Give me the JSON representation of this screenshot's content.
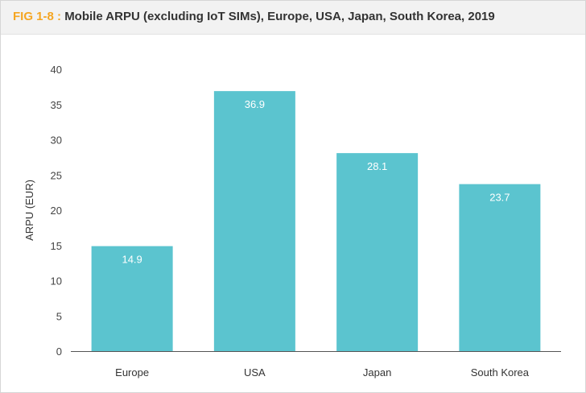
{
  "header": {
    "fig_label": "FIG 1-8 :",
    "title_text": "Mobile ARPU (excluding IoT SIMs), Europe, USA, Japan, South Korea, 2019"
  },
  "chart_data": {
    "type": "bar",
    "title": "Mobile ARPU (excluding IoT SIMs), Europe, USA, Japan, South Korea, 2019",
    "categories": [
      "Europe",
      "USA",
      "Japan",
      "South Korea"
    ],
    "values": [
      14.9,
      36.9,
      28.1,
      23.7
    ],
    "data_labels": [
      "14.9",
      "36.9",
      "28.1",
      "23.7"
    ],
    "xlabel": "",
    "ylabel": "ARPU (EUR)",
    "ylim": [
      0,
      40
    ],
    "yticks": [
      0,
      5,
      10,
      15,
      20,
      25,
      30,
      35,
      40
    ],
    "grid": false,
    "bar_color": "#5bc4cf",
    "accent_color": "#f5a623"
  }
}
